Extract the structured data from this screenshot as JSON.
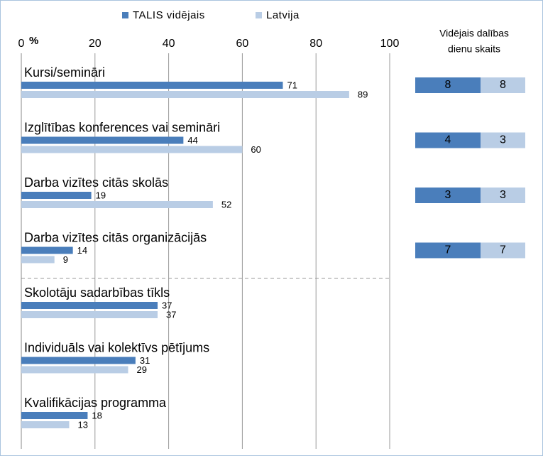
{
  "chart_data": {
    "type": "bar",
    "orientation": "horizontal",
    "x_label": "%",
    "categories": [
      "Kursi/semināri",
      "Izglītības konferences vai semināri",
      "Darba vizītes citās skolās",
      "Darba vizītes citās organizācijās",
      "Skolotāju sadarbības tīkls",
      "Individuāls vai kolektīvs pētījums",
      "Kvalifikācijas programma"
    ],
    "series": [
      {
        "name": "TALIS vidējais",
        "color": "#4a7ebb",
        "values": [
          71,
          44,
          19,
          14,
          37,
          31,
          18
        ]
      },
      {
        "name": "Latvija",
        "color": "#b9cde5",
        "values": [
          89,
          60,
          52,
          9,
          37,
          29,
          13
        ]
      }
    ],
    "xlim": [
      0,
      100
    ],
    "xticks": [
      0,
      20,
      40,
      60,
      80,
      100
    ],
    "grid": true,
    "legend": "top",
    "side_table": {
      "title_lines": [
        "Vidējais dalības",
        "dienu skaits"
      ],
      "rows": [
        [
          8,
          8
        ],
        [
          4,
          3
        ],
        [
          3,
          3
        ],
        [
          7,
          7
        ]
      ]
    }
  }
}
